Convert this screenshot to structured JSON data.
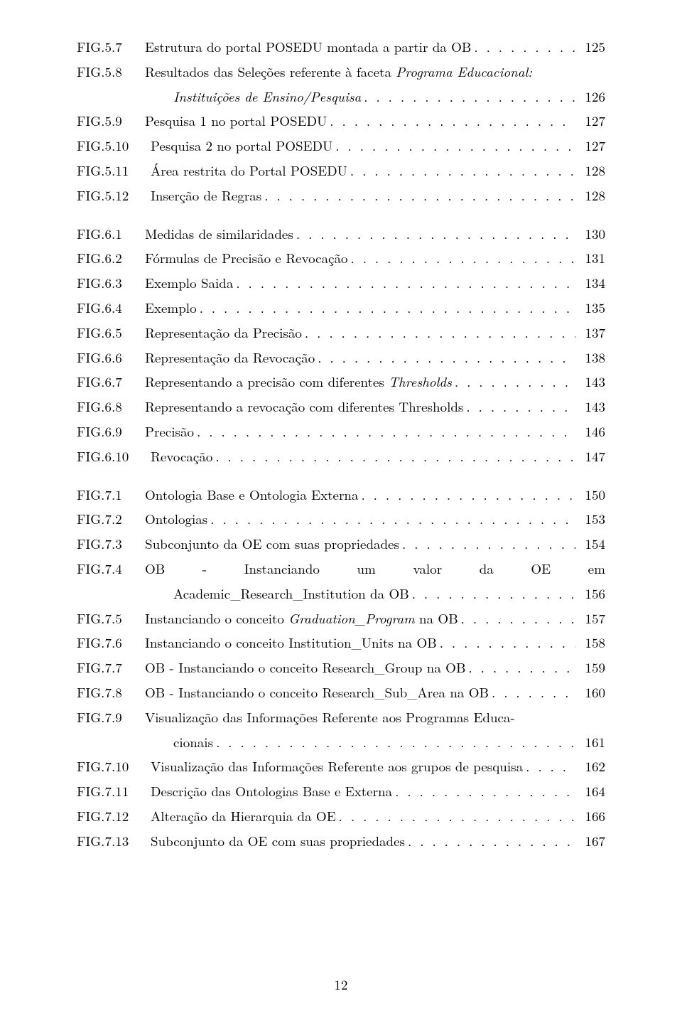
{
  "page_number": "12",
  "groups": [
    {
      "entries": [
        {
          "label": "FIG.5.7",
          "text_parts": [
            {
              "t": "Estrutura do portal POSEDU montada a partir da OB",
              "i": false
            }
          ],
          "page": "125",
          "wide": false
        },
        {
          "label": "FIG.5.8",
          "text_parts": [
            {
              "t": "Resultados das Seleções referente à faceta ",
              "i": false
            },
            {
              "t": "Programa Educacional:",
              "i": true
            }
          ],
          "page": null,
          "wide": false,
          "continuation": {
            "text_parts": [
              {
                "t": "Instituições de Ensino/Pesquisa",
                "i": true
              }
            ],
            "page": "126"
          }
        },
        {
          "label": "FIG.5.9",
          "text_parts": [
            {
              "t": "Pesquisa 1 no portal POSEDU",
              "i": false
            }
          ],
          "page": "127",
          "wide": false
        },
        {
          "label": "FIG.5.10",
          "text_parts": [
            {
              "t": "Pesquisa 2 no portal POSEDU",
              "i": false
            }
          ],
          "page": "127",
          "wide": true
        },
        {
          "label": "FIG.5.11",
          "text_parts": [
            {
              "t": "Área restrita do Portal POSEDU",
              "i": false
            }
          ],
          "page": "128",
          "wide": true
        },
        {
          "label": "FIG.5.12",
          "text_parts": [
            {
              "t": "Inserção de Regras",
              "i": false
            }
          ],
          "page": "128",
          "wide": true
        }
      ]
    },
    {
      "entries": [
        {
          "label": "FIG.6.1",
          "text_parts": [
            {
              "t": "Medidas de similaridades",
              "i": false
            }
          ],
          "page": "130",
          "wide": false
        },
        {
          "label": "FIG.6.2",
          "text_parts": [
            {
              "t": "Fórmulas de Precisão e Revocação",
              "i": false
            }
          ],
          "page": "131",
          "wide": false
        },
        {
          "label": "FIG.6.3",
          "text_parts": [
            {
              "t": "Exemplo Saida",
              "i": false
            }
          ],
          "page": "134",
          "wide": false
        },
        {
          "label": "FIG.6.4",
          "text_parts": [
            {
              "t": "Exemplo",
              "i": false
            }
          ],
          "page": "135",
          "wide": false
        },
        {
          "label": "FIG.6.5",
          "text_parts": [
            {
              "t": "Representação da Precisão",
              "i": false
            }
          ],
          "page": "137",
          "wide": false
        },
        {
          "label": "FIG.6.6",
          "text_parts": [
            {
              "t": "Representação da Revocação",
              "i": false
            }
          ],
          "page": "138",
          "wide": false
        },
        {
          "label": "FIG.6.7",
          "text_parts": [
            {
              "t": "Representando a precisão com diferentes ",
              "i": false
            },
            {
              "t": "Thresholds",
              "i": true
            }
          ],
          "page": "143",
          "wide": false
        },
        {
          "label": "FIG.6.8",
          "text_parts": [
            {
              "t": "Representando a revocação com diferentes Thresholds",
              "i": false
            }
          ],
          "page": "143",
          "wide": false
        },
        {
          "label": "FIG.6.9",
          "text_parts": [
            {
              "t": "Precisão",
              "i": false
            }
          ],
          "page": "146",
          "wide": false
        },
        {
          "label": "FIG.6.10",
          "text_parts": [
            {
              "t": "Revocação",
              "i": false
            }
          ],
          "page": "147",
          "wide": true
        }
      ]
    },
    {
      "entries": [
        {
          "label": "FIG.7.1",
          "text_parts": [
            {
              "t": "Ontologia Base e Ontologia Externa",
              "i": false
            }
          ],
          "page": "150",
          "wide": false
        },
        {
          "label": "FIG.7.2",
          "text_parts": [
            {
              "t": "Ontologias",
              "i": false
            }
          ],
          "page": "153",
          "wide": false
        },
        {
          "label": "FIG.7.3",
          "text_parts": [
            {
              "t": "Subconjunto da OE com suas propriedades",
              "i": false
            }
          ],
          "page": "154",
          "wide": false
        },
        {
          "label": "FIG.7.4",
          "justify_words": [
            "OB",
            "-",
            "Instanciando",
            "um",
            "valor",
            "da",
            "OE",
            "em"
          ],
          "page": null,
          "wide": false,
          "continuation": {
            "text_parts": [
              {
                "t": "Academic_Research_Institution da OB",
                "i": false
              }
            ],
            "page": "156"
          }
        },
        {
          "label": "FIG.7.5",
          "text_parts": [
            {
              "t": "Instanciando o conceito ",
              "i": false
            },
            {
              "t": "Graduation_Program",
              "i": true
            },
            {
              "t": " na OB",
              "i": false
            }
          ],
          "page": "157",
          "wide": false
        },
        {
          "label": "FIG.7.6",
          "text_parts": [
            {
              "t": "Instanciando o conceito Institution_Units na OB",
              "i": false
            }
          ],
          "page": "158",
          "wide": false
        },
        {
          "label": "FIG.7.7",
          "text_parts": [
            {
              "t": "OB - Instanciando o conceito Research_Group na OB",
              "i": false
            }
          ],
          "page": "159",
          "wide": false
        },
        {
          "label": "FIG.7.8",
          "text_parts": [
            {
              "t": "OB - Instanciando o conceito Research_Sub_Area na OB",
              "i": false
            }
          ],
          "page": "160",
          "wide": false
        },
        {
          "label": "FIG.7.9",
          "text_parts": [
            {
              "t": "Visualização das Informações Referente aos Programas Educa-",
              "i": false
            }
          ],
          "page": null,
          "wide": false,
          "nowrap_off": true,
          "continuation": {
            "text_parts": [
              {
                "t": "cionais",
                "i": false
              }
            ],
            "page": "161"
          }
        },
        {
          "label": "FIG.7.10",
          "text_parts": [
            {
              "t": "Visualização das Informações Referente aos grupos de pesquisa",
              "i": false
            }
          ],
          "page": "162",
          "wide": true
        },
        {
          "label": "FIG.7.11",
          "text_parts": [
            {
              "t": "Descrição das Ontologias Base e Externa",
              "i": false
            }
          ],
          "page": "164",
          "wide": true
        },
        {
          "label": "FIG.7.12",
          "text_parts": [
            {
              "t": "Alteração da Hierarquia da OE",
              "i": false
            }
          ],
          "page": "166",
          "wide": true
        },
        {
          "label": "FIG.7.13",
          "text_parts": [
            {
              "t": "Subconjunto da OE com suas propriedades",
              "i": false
            }
          ],
          "page": "167",
          "wide": true
        }
      ]
    }
  ]
}
